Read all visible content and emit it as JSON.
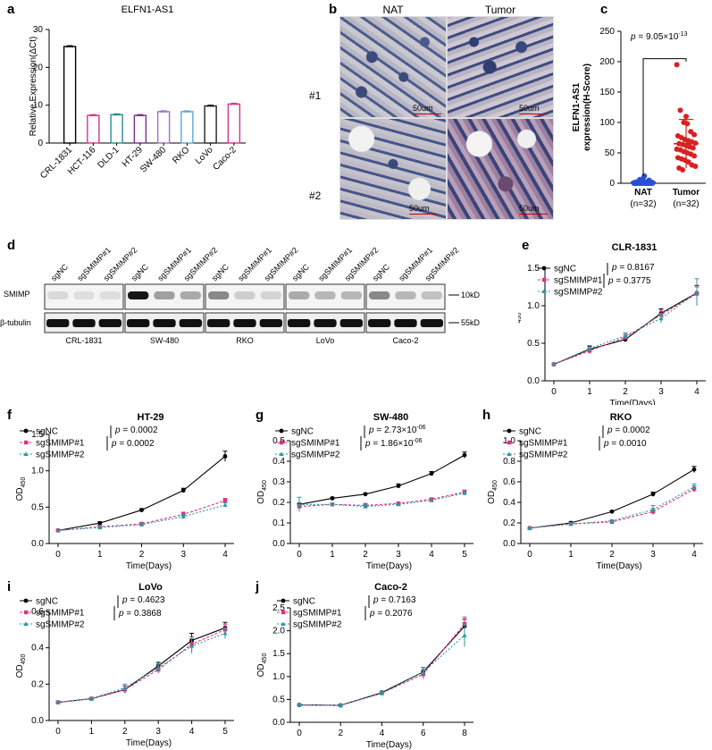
{
  "panels": {
    "a": {
      "letter": "a",
      "chart_data": {
        "type": "bar",
        "title": "ELFN1-AS1",
        "ylabel": "Relative Expression(ΔCt)",
        "ylim": [
          0,
          30
        ],
        "yticks": [
          "0",
          "10",
          "20",
          "30"
        ],
        "categories": [
          "CRL-1831",
          "HCT-116",
          "DLD-1",
          "HT-29",
          "SW-480",
          "RKO",
          "LoVo",
          "Caco-2"
        ],
        "values": [
          25.5,
          7.3,
          7.5,
          7.3,
          8.3,
          8.3,
          9.8,
          10.3
        ],
        "colors": [
          "#000000",
          "#d6338a",
          "#2a8c8c",
          "#7a2f8e",
          "#a070c8",
          "#5aa8d8",
          "#222222",
          "#d6338a"
        ]
      }
    },
    "b": {
      "letter": "b",
      "col_headers": [
        "NAT",
        "Tumor"
      ],
      "row_labels": [
        "#1",
        "#2"
      ],
      "scale_label": "50um"
    },
    "c": {
      "letter": "c",
      "chart_data": {
        "type": "scatter",
        "ylabel_line1": "ELFN1-AS1",
        "ylabel_line2": "expression(H-Score)",
        "ylim": [
          0,
          250
        ],
        "yticks": [
          "0",
          "50",
          "100",
          "150",
          "200",
          "250"
        ],
        "categories": [
          "NAT",
          "Tumor"
        ],
        "counts": [
          "(n=32)",
          "(n=32)"
        ],
        "pvalue_prefix": "p = 9.05×10",
        "pvalue_exp": "-13",
        "series": [
          {
            "name": "NAT",
            "color": "#2b4fd8",
            "values": [
              0,
              0,
              0,
              1,
              2,
              0,
              0,
              3,
              1,
              0,
              5,
              0,
              2,
              0,
              8,
              0,
              0,
              1,
              0,
              0,
              12,
              0,
              2,
              0,
              0,
              4,
              0,
              0,
              1,
              0,
              6,
              0
            ],
            "mean": 2,
            "sd": 3
          },
          {
            "name": "Tumor",
            "color": "#d92020",
            "values": [
              195,
              120,
              100,
              98,
              85,
              80,
              78,
              75,
              72,
              70,
              68,
              66,
              65,
              64,
              62,
              60,
              58,
              56,
              55,
              52,
              50,
              48,
              45,
              42,
              40,
              38,
              35,
              30,
              28,
              25,
              22,
              110
            ],
            "mean": 65,
            "sd": 40
          }
        ]
      }
    },
    "d": {
      "letter": "d",
      "lane_labels": [
        "sgNC",
        "sgSMIMP#1",
        "sgSMIMP#2"
      ],
      "row_labels": [
        "SMIMP",
        "β-tubulin"
      ],
      "cell_lines": [
        "CRL-1831",
        "SW-480",
        "RKO",
        "LoVo",
        "Caco-2"
      ],
      "markers": [
        "10kD",
        "55kD"
      ],
      "smimp_intensity": [
        [
          0.1,
          0.08,
          0.08
        ],
        [
          0.95,
          0.35,
          0.3
        ],
        [
          0.45,
          0.15,
          0.12
        ],
        [
          0.3,
          0.25,
          0.25
        ],
        [
          0.45,
          0.25,
          0.2
        ]
      ]
    },
    "e": {
      "letter": "e",
      "chart_data": {
        "type": "line",
        "title": "CLR-1831",
        "xlabel": "Time(Days)",
        "ylabel_main": "OD",
        "ylabel_sub": "450",
        "x": [
          0,
          1,
          2,
          3,
          4
        ],
        "xticks": [
          "0",
          "1",
          "2",
          "3",
          "4"
        ],
        "ylim": [
          0,
          1.5
        ],
        "yticks": [
          "0.0",
          "0.5",
          "1.0",
          "1.5"
        ],
        "pvalues": [
          "p = 0.8167",
          "p = 0.3775"
        ],
        "series": [
          {
            "name": "sgNC",
            "values": [
              0.22,
              0.42,
              0.55,
              0.9,
              1.17
            ],
            "err": [
              0.01,
              0.04,
              0.03,
              0.06,
              0.1
            ]
          },
          {
            "name": "sgSMIMP#1",
            "values": [
              0.22,
              0.4,
              0.58,
              0.88,
              1.16
            ],
            "err": [
              0.01,
              0.04,
              0.04,
              0.06,
              0.09
            ]
          },
          {
            "name": "sgSMIMP#2",
            "values": [
              0.22,
              0.43,
              0.6,
              0.83,
              1.18
            ],
            "err": [
              0.01,
              0.04,
              0.04,
              0.06,
              0.18
            ]
          }
        ]
      }
    },
    "f": {
      "letter": "f",
      "chart_data": {
        "type": "line",
        "title": "HT-29",
        "xlabel": "Time(Days)",
        "ylabel_main": "OD",
        "ylabel_sub": "450",
        "x": [
          0,
          1,
          2,
          3,
          4
        ],
        "xticks": [
          "0",
          "1",
          "2",
          "3",
          "4"
        ],
        "ylim": [
          0,
          1.5
        ],
        "yticks": [
          "0.0",
          "0.5",
          "1.0",
          "1.5"
        ],
        "pvalues": [
          "p = 0.0002",
          "p = 0.0002"
        ],
        "series": [
          {
            "name": "sgNC",
            "values": [
              0.18,
              0.28,
              0.46,
              0.73,
              1.2
            ],
            "err": [
              0.01,
              0.02,
              0.02,
              0.03,
              0.07
            ]
          },
          {
            "name": "sgSMIMP#1",
            "values": [
              0.18,
              0.23,
              0.27,
              0.4,
              0.59
            ],
            "err": [
              0.01,
              0.02,
              0.02,
              0.03,
              0.03
            ]
          },
          {
            "name": "sgSMIMP#2",
            "values": [
              0.18,
              0.22,
              0.26,
              0.37,
              0.53
            ],
            "err": [
              0.01,
              0.02,
              0.02,
              0.03,
              0.03
            ]
          }
        ]
      }
    },
    "g": {
      "letter": "g",
      "chart_data": {
        "type": "line",
        "title": "SW-480",
        "xlabel": "Time(Days)",
        "ylabel_main": "OD",
        "ylabel_sub": "450",
        "x": [
          0,
          1,
          2,
          3,
          4,
          5
        ],
        "xticks": [
          "0",
          "1",
          "2",
          "3",
          "4",
          "5"
        ],
        "ylim": [
          0,
          0.5
        ],
        "yticks": [
          "0.0",
          "0.1",
          "0.2",
          "0.3",
          "0.4",
          "0.5"
        ],
        "pvalues": [
          "p = 2.73×10",
          "p = 1.86×10"
        ],
        "pvalue_exps": [
          "-06",
          "-06"
        ],
        "series": [
          {
            "name": "sgNC",
            "values": [
              0.19,
              0.22,
              0.24,
              0.28,
              0.34,
              0.43
            ],
            "err": [
              0.005,
              0.005,
              0.005,
              0.01,
              0.01,
              0.015
            ]
          },
          {
            "name": "sgSMIMP#1",
            "values": [
              0.18,
              0.19,
              0.185,
              0.195,
              0.215,
              0.25
            ],
            "err": [
              0.01,
              0.005,
              0.01,
              0.005,
              0.005,
              0.01
            ]
          },
          {
            "name": "sgSMIMP#2",
            "values": [
              0.19,
              0.19,
              0.18,
              0.19,
              0.21,
              0.245
            ],
            "err": [
              0.035,
              0.005,
              0.01,
              0.005,
              0.005,
              0.01
            ]
          }
        ]
      }
    },
    "h": {
      "letter": "h",
      "chart_data": {
        "type": "line",
        "title": "RKO",
        "xlabel": "Time(Days)",
        "ylabel_main": "OD",
        "ylabel_sub": "450",
        "x": [
          0,
          1,
          2,
          3,
          4
        ],
        "xticks": [
          "0",
          "1",
          "2",
          "3",
          "4"
        ],
        "ylim": [
          0,
          1.0
        ],
        "yticks": [
          "0.0",
          "0.2",
          "0.4",
          "0.6",
          "0.8",
          "1.0"
        ],
        "pvalues": [
          "p = 0.0002",
          "p = 0.0010"
        ],
        "series": [
          {
            "name": "sgNC",
            "values": [
              0.15,
              0.2,
              0.31,
              0.48,
              0.72
            ],
            "err": [
              0.005,
              0.01,
              0.01,
              0.02,
              0.03
            ]
          },
          {
            "name": "sgSMIMP#1",
            "values": [
              0.15,
              0.19,
              0.21,
              0.31,
              0.53
            ],
            "err": [
              0.005,
              0.01,
              0.01,
              0.03,
              0.03
            ]
          },
          {
            "name": "sgSMIMP#2",
            "values": [
              0.15,
              0.19,
              0.22,
              0.33,
              0.55
            ],
            "err": [
              0.005,
              0.01,
              0.01,
              0.04,
              0.03
            ]
          }
        ]
      }
    },
    "i": {
      "letter": "i",
      "chart_data": {
        "type": "line",
        "title": "LoVo",
        "xlabel": "Time(Days)",
        "ylabel_main": "OD",
        "ylabel_sub": "450",
        "x": [
          0,
          1,
          2,
          3,
          4,
          5
        ],
        "xticks": [
          "0",
          "1",
          "2",
          "3",
          "4",
          "5"
        ],
        "ylim": [
          0,
          0.6
        ],
        "yticks": [
          "0.0",
          "0.2",
          "0.4",
          "0.6"
        ],
        "pvalues": [
          "p = 0.4623",
          "p = 0.3868"
        ],
        "series": [
          {
            "name": "sgNC",
            "values": [
              0.1,
              0.12,
              0.17,
              0.3,
              0.44,
              0.51
            ],
            "err": [
              0.005,
              0.005,
              0.02,
              0.02,
              0.04,
              0.03
            ]
          },
          {
            "name": "sgSMIMP#1",
            "values": [
              0.1,
              0.12,
              0.17,
              0.28,
              0.42,
              0.5
            ],
            "err": [
              0.005,
              0.005,
              0.02,
              0.02,
              0.04,
              0.03
            ]
          },
          {
            "name": "sgSMIMP#2",
            "values": [
              0.1,
              0.12,
              0.18,
              0.29,
              0.41,
              0.48
            ],
            "err": [
              0.005,
              0.005,
              0.02,
              0.02,
              0.04,
              0.03
            ]
          }
        ]
      }
    },
    "j": {
      "letter": "j",
      "chart_data": {
        "type": "line",
        "title": "Caco-2",
        "xlabel": "Time(Days)",
        "ylabel_main": "OD",
        "ylabel_sub": "450",
        "x": [
          0,
          2,
          4,
          6,
          8
        ],
        "xticks": [
          "0",
          "2",
          "4",
          "6",
          "8"
        ],
        "ylim": [
          0,
          2.5
        ],
        "yticks": [
          "0.0",
          "0.5",
          "1.0",
          "1.5",
          "2.0",
          "2.5"
        ],
        "pvalues": [
          "p = 0.7163",
          "p = 0.2076"
        ],
        "series": [
          {
            "name": "sgNC",
            "values": [
              0.38,
              0.37,
              0.65,
              1.1,
              2.1
            ],
            "err": [
              0.02,
              0.02,
              0.03,
              0.1,
              0.15
            ]
          },
          {
            "name": "sgSMIMP#1",
            "values": [
              0.38,
              0.37,
              0.64,
              1.05,
              2.15
            ],
            "err": [
              0.02,
              0.02,
              0.03,
              0.1,
              0.15
            ]
          },
          {
            "name": "sgSMIMP#2",
            "values": [
              0.38,
              0.37,
              0.63,
              1.1,
              1.9
            ],
            "err": [
              0.02,
              0.02,
              0.03,
              0.1,
              0.25
            ]
          }
        ]
      }
    }
  },
  "legend_colors": {
    "sgNC": "#000000",
    "sgSMIMP#1": "#e0307f",
    "sgSMIMP#2": "#2a9aa0"
  }
}
